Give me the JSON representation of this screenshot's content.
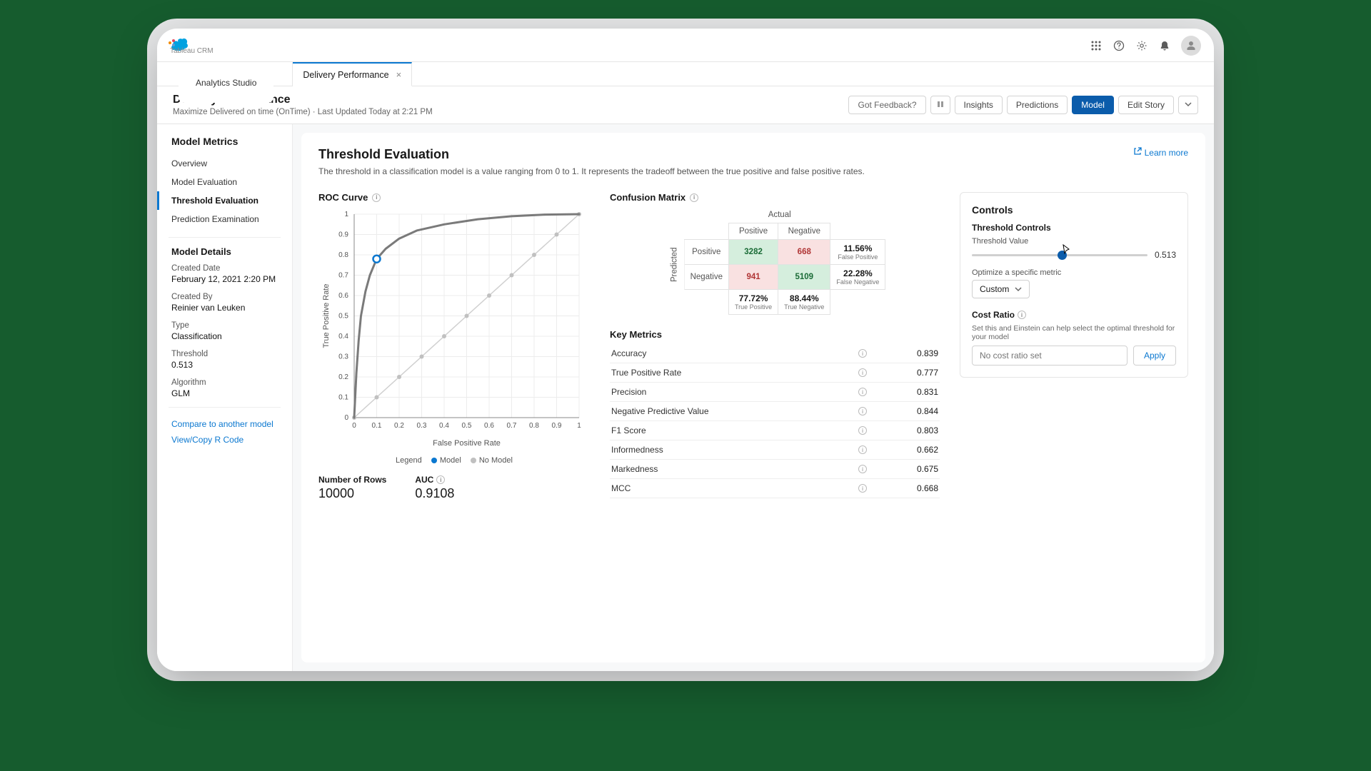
{
  "header": {
    "app_launcher_icon": "grid",
    "help_icon": "help",
    "settings_icon": "gear",
    "notification_icon": "bell",
    "user_avatar_icon": "user"
  },
  "tabs": {
    "app_tab_sub": "Tableau CRM",
    "app_tab_main": "Analytics Studio",
    "active_tab": "Delivery Performance"
  },
  "page": {
    "title": "Delivery Performance",
    "subtitle": "Maximize Delivered on time (OnTime) · Last Updated Today at 2:21 PM",
    "got_feedback": "Got Feedback?",
    "insights": "Insights",
    "predictions": "Predictions",
    "model": "Model",
    "edit_story": "Edit Story"
  },
  "sidebar": {
    "heading": "Model Metrics",
    "items": [
      "Overview",
      "Model Evaluation",
      "Threshold Evaluation",
      "Prediction Examination"
    ],
    "active_index": 2,
    "details_heading": "Model Details",
    "details": [
      {
        "label": "Created Date",
        "value": "February 12, 2021 2:20 PM"
      },
      {
        "label": "Created By",
        "value": "Reinier van Leuken"
      },
      {
        "label": "Type",
        "value": "Classification"
      },
      {
        "label": "Threshold",
        "value": "0.513"
      },
      {
        "label": "Algorithm",
        "value": "GLM"
      }
    ],
    "links": [
      "Compare to another model",
      "View/Copy R Code"
    ]
  },
  "main": {
    "title": "Threshold Evaluation",
    "description": "The threshold in a classification model is a value ranging from 0 to 1. It represents the tradeoff between the true positive and false positive rates.",
    "learn_more": "Learn more"
  },
  "roc": {
    "title": "ROC Curve",
    "xlabel": "False Positive Rate",
    "ylabel": "True Positive Rate",
    "xlim": [
      0,
      1
    ],
    "ylim": [
      0,
      1
    ],
    "ticks": [
      0,
      0.1,
      0.2,
      0.3,
      0.4,
      0.5,
      0.6,
      0.7,
      0.8,
      0.9,
      1
    ],
    "curve": [
      [
        0.0,
        0.0
      ],
      [
        0.01,
        0.22
      ],
      [
        0.02,
        0.38
      ],
      [
        0.03,
        0.5
      ],
      [
        0.05,
        0.62
      ],
      [
        0.07,
        0.7
      ],
      [
        0.1,
        0.78
      ],
      [
        0.14,
        0.83
      ],
      [
        0.2,
        0.88
      ],
      [
        0.28,
        0.92
      ],
      [
        0.4,
        0.95
      ],
      [
        0.55,
        0.975
      ],
      [
        0.7,
        0.99
      ],
      [
        0.85,
        0.998
      ],
      [
        1.0,
        1.0
      ]
    ],
    "curve_color": "#7a7a7a",
    "curve_width": 3,
    "diagonal_color": "#d0d0d0",
    "diagonal_marker_color": "#c0c0c0",
    "marker_point": [
      0.1,
      0.78
    ],
    "marker_color": "#0b78d0",
    "grid_color": "#ececec",
    "axis_color": "#888",
    "text_color": "#555",
    "background": "#ffffff",
    "legend_label": "Legend",
    "legend_model": "Model",
    "legend_nomodel": "No Model",
    "stats": {
      "rows_label": "Number of Rows",
      "rows_value": "10000",
      "auc_label": "AUC",
      "auc_value": "0.9108"
    }
  },
  "confusion": {
    "title": "Confusion Matrix",
    "axis_actual": "Actual",
    "axis_predicted": "Predicted",
    "pos": "Positive",
    "neg": "Negative",
    "tp": "3282",
    "fp": "668",
    "fn": "941",
    "tn": "5109",
    "fpr_pct": "11.56%",
    "fpr_lbl": "False Positive",
    "fnr_pct": "22.28%",
    "fnr_lbl": "False Negative",
    "tpr_pct": "77.72%",
    "tpr_lbl": "True Positive",
    "tnr_pct": "88.44%",
    "tnr_lbl": "True Negative",
    "colors": {
      "tp_bg": "#d5eedd",
      "tn_bg": "#d5eedd",
      "fp_bg": "#f9e1e1",
      "fn_bg": "#f9e1e1",
      "pos_text": "#1a6b36",
      "neg_text": "#b03535"
    }
  },
  "key_metrics": {
    "title": "Key Metrics",
    "rows": [
      {
        "name": "Accuracy",
        "value": "0.839"
      },
      {
        "name": "True Positive Rate",
        "value": "0.777"
      },
      {
        "name": "Precision",
        "value": "0.831"
      },
      {
        "name": "Negative Predictive Value",
        "value": "0.844"
      },
      {
        "name": "F1 Score",
        "value": "0.803"
      },
      {
        "name": "Informedness",
        "value": "0.662"
      },
      {
        "name": "Markedness",
        "value": "0.675"
      },
      {
        "name": "MCC",
        "value": "0.668"
      }
    ]
  },
  "controls": {
    "title": "Controls",
    "threshold_controls": "Threshold Controls",
    "threshold_value_label": "Threshold Value",
    "threshold_value": "0.513",
    "slider_percent": 51.3,
    "optimize_label": "Optimize a specific metric",
    "optimize_selected": "Custom",
    "cost_ratio_label": "Cost Ratio",
    "cost_ratio_help": "Set this and Einstein can help select the optimal threshold for your model",
    "cost_input_placeholder": "No cost ratio set",
    "apply": "Apply"
  }
}
